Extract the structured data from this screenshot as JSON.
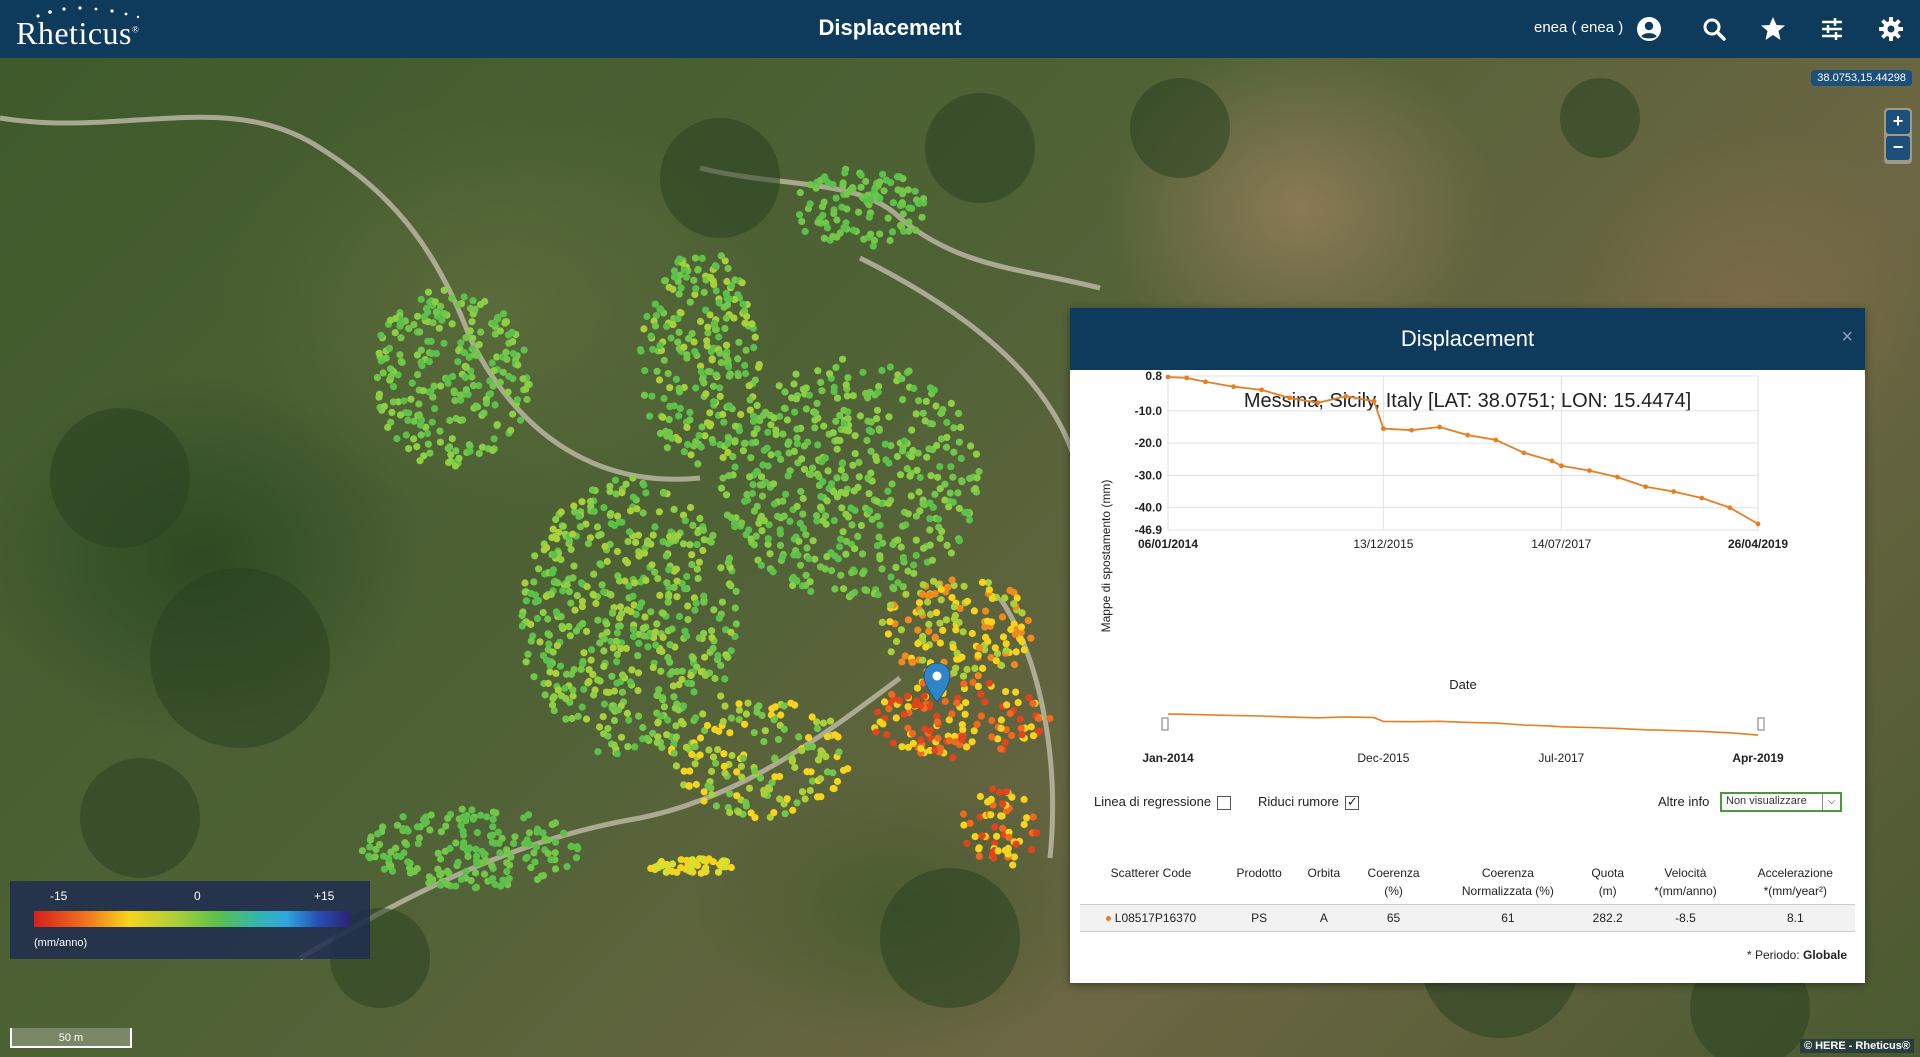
{
  "header": {
    "logo_text": "Rheticus",
    "title": "Displacement",
    "user_label": "enea ( enea )",
    "icons": [
      "user-icon",
      "search-icon",
      "star-icon",
      "sliders-icon",
      "gear-icon"
    ]
  },
  "map": {
    "coordinates": "38.0753,15.44298",
    "zoom_in": "+",
    "zoom_out": "−",
    "legend": {
      "min": "-15",
      "mid": "0",
      "max": "+15",
      "unit": "(mm/anno)"
    },
    "scale": "50 m",
    "attribution": "© HERE - Rheticus®",
    "marker_icon": "map-pin-icon"
  },
  "popup": {
    "title": "Displacement",
    "close": "×",
    "location": "Messina, Sicily, Italy [LAT: 38.0751; LON: 15.4474]",
    "chart_data": {
      "type": "line",
      "title": "",
      "xlabel": "Date",
      "ylabel": "Mappe di spostamento (mm)",
      "ylim": [
        -46.9,
        0.8
      ],
      "yticks": [
        "0.8",
        "-10.0",
        "-20.0",
        "-30.0",
        "-40.0",
        "-46.9"
      ],
      "xticks": [
        "06/01/2014",
        "13/12/2015",
        "14/07/2017",
        "26/04/2019"
      ],
      "series": [
        {
          "color": "#e67e22",
          "x": [
            "2014-01",
            "2014-03",
            "2014-05",
            "2014-08",
            "2014-11",
            "2015-02",
            "2015-05",
            "2015-08",
            "2015-11",
            "2015-12",
            "2016-03",
            "2016-06",
            "2016-09",
            "2016-12",
            "2017-03",
            "2017-06",
            "2017-07",
            "2017-10",
            "2018-01",
            "2018-04",
            "2018-07",
            "2018-10",
            "2019-01",
            "2019-04"
          ],
          "values": [
            0.5,
            0.2,
            -1.0,
            -2.5,
            -3.5,
            -6.0,
            -7.5,
            -5.5,
            -7.0,
            -15.5,
            -16.0,
            -15.0,
            -17.5,
            -19.0,
            -23.0,
            -25.5,
            -27.0,
            -28.5,
            -30.5,
            -33.5,
            -35.0,
            -37.0,
            -40.0,
            -45.0
          ]
        }
      ],
      "overview": {
        "xticks": [
          "Jan-2014",
          "Dec-2015",
          "Jul-2017",
          "Apr-2019"
        ]
      }
    },
    "options": {
      "regression_label": "Linea di regressione",
      "noise_label": "Riduci rumore",
      "altre_label": "Altre info",
      "altre_value": "Non visualizzare"
    },
    "table": {
      "headers": [
        [
          "Scatterer Code"
        ],
        [
          "Prodotto"
        ],
        [
          "Orbita"
        ],
        [
          "Coerenza",
          "(%)"
        ],
        [
          "Coerenza",
          "Normalizzata (%)"
        ],
        [
          "Quota",
          "(m)"
        ],
        [
          "Velocità",
          "*(mm/anno)"
        ],
        [
          "Accelerazione",
          "*(mm/year²)"
        ]
      ],
      "row": [
        "L08517P16370",
        "PS",
        "A",
        "65",
        "61",
        "282.2",
        "-8.5",
        "8.1"
      ]
    },
    "periodo_label": "* Periodo:",
    "periodo_value": "Globale"
  }
}
